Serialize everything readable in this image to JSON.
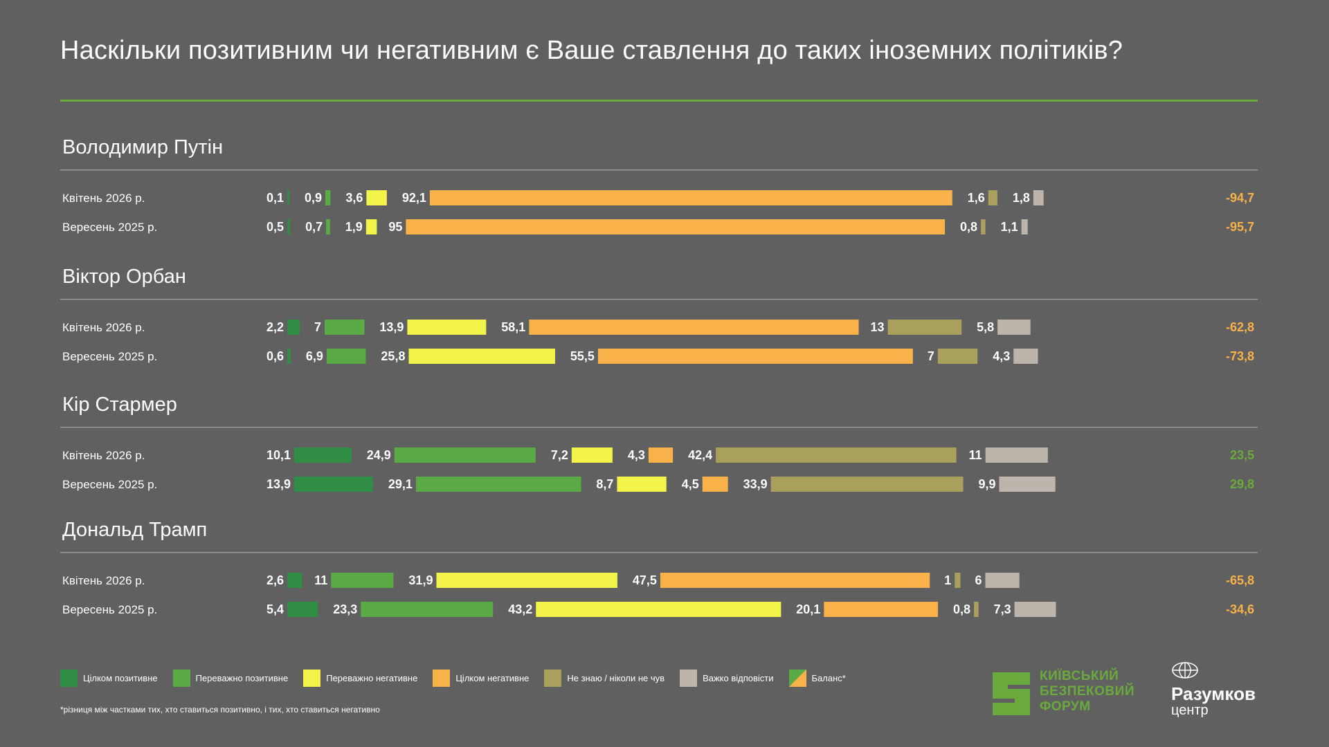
{
  "title": "Наскільки позитивним чи негативним є Ваше ставлення до таких іноземних політиків?",
  "colors": {
    "background": "#606060",
    "rule": "#6aaa3c",
    "positive": "#6aaa3c",
    "negative": "#f9b24a",
    "segments": [
      "#2f8e44",
      "#5aaa46",
      "#f2f44a",
      "#f9b24a",
      "#a8a05c",
      "#bdb5ab"
    ]
  },
  "chart_data": {
    "type": "bar",
    "stacked": false,
    "categories": [
      "Цілком позитивне",
      "Переважно позитивне",
      "Переважно негативне",
      "Цілком негативне",
      "Не знаю / ніколи не чув",
      "Важко відповісти"
    ],
    "balance_label": "Баланс*",
    "groups": [
      {
        "name": "Володимир Путін",
        "rows": [
          {
            "period": "Квітень  2026 р.",
            "values": [
              0.1,
              0.9,
              3.6,
              92.1,
              1.6,
              1.8
            ],
            "labels": [
              "0,1",
              "0,9",
              "3,6",
              "92,1",
              "1,6",
              "1,8"
            ],
            "balance": "-94,7",
            "balance_sign": "negative"
          },
          {
            "period": "Вересень 2025 р.",
            "values": [
              0.5,
              0.7,
              1.9,
              95,
              0.8,
              1.1
            ],
            "labels": [
              "0,5",
              "0,7",
              "1,9",
              "95",
              "0,8",
              "1,1"
            ],
            "balance": "-95,7",
            "balance_sign": "negative"
          }
        ]
      },
      {
        "name": "Віктор Орбан",
        "rows": [
          {
            "period": "Квітень  2026 р.",
            "values": [
              2.2,
              7,
              13.9,
              58.1,
              13,
              5.8
            ],
            "labels": [
              "2,2",
              "7",
              "13,9",
              "58,1",
              "13",
              "5,8"
            ],
            "balance": "-62,8",
            "balance_sign": "negative"
          },
          {
            "period": "Вересень 2025 р.",
            "values": [
              0.6,
              6.9,
              25.8,
              55.5,
              7,
              4.3
            ],
            "labels": [
              "0,6",
              "6,9",
              "25,8",
              "55,5",
              "7",
              "4,3"
            ],
            "balance": "-73,8",
            "balance_sign": "negative"
          }
        ]
      },
      {
        "name": "Кір Стармер",
        "rows": [
          {
            "period": "Квітень  2026 р.",
            "values": [
              10.1,
              24.9,
              7.2,
              4.3,
              42.4,
              11
            ],
            "labels": [
              "10,1",
              "24,9",
              "7,2",
              "4,3",
              "42,4",
              "11"
            ],
            "balance": "23,5",
            "balance_sign": "positive"
          },
          {
            "period": "Вересень 2025 р.",
            "values": [
              13.9,
              29.1,
              8.7,
              4.5,
              33.9,
              9.9
            ],
            "labels": [
              "13,9",
              "29,1",
              "8,7",
              "4,5",
              "33,9",
              "9,9"
            ],
            "balance": "29,8",
            "balance_sign": "positive"
          }
        ]
      },
      {
        "name": "Дональд Трамп",
        "rows": [
          {
            "period": "Квітень  2026 р.",
            "values": [
              2.6,
              11,
              31.9,
              47.5,
              1,
              6
            ],
            "labels": [
              "2,6",
              "11",
              "31,9",
              "47,5",
              "1",
              "6"
            ],
            "balance": "-65,8",
            "balance_sign": "negative"
          },
          {
            "period": "Вересень 2025 р.",
            "values": [
              5.4,
              23.3,
              43.2,
              20.1,
              0.8,
              7.3
            ],
            "labels": [
              "5,4",
              "23,3",
              "43,2",
              "20,1",
              "0,8",
              "7,3"
            ],
            "balance": "-34,6",
            "balance_sign": "negative"
          }
        ]
      }
    ]
  },
  "footnote": "*різниця між частками тих, хто ставиться позитивно, і тих, хто ставиться негативно",
  "logos": {
    "kbf_lines": [
      "КИЇВСЬКИЙ",
      "БЕЗПЕКОВИЙ",
      "ФОРУМ"
    ],
    "razumkov_name": "Разумков",
    "razumkov_sub": "центр"
  }
}
